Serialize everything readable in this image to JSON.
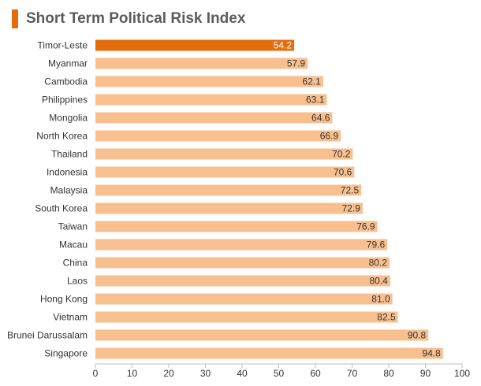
{
  "colors": {
    "highlight": "#e46c0a",
    "bar": "#f9c08f",
    "title_accent": "#e46c0a",
    "axis": "#bfbfbf",
    "highlight_label": "#ffffff",
    "label": "#333333"
  },
  "chart_data": {
    "type": "bar",
    "orientation": "horizontal",
    "title": "Short Term Political Risk Index",
    "xlabel": "",
    "ylabel": "",
    "xlim": [
      0,
      100
    ],
    "x_ticks": [
      "0",
      "10",
      "20",
      "30",
      "40",
      "50",
      "60",
      "70",
      "80",
      "90",
      "100"
    ],
    "grid": false,
    "legend": "none",
    "highlighted_category": "Timor-Leste",
    "categories": [
      "Timor-Leste",
      "Myanmar",
      "Cambodia",
      "Philippines",
      "Mongolia",
      "North Korea",
      "Thailand",
      "Indonesia",
      "Malaysia",
      "South Korea",
      "Taiwan",
      "Macau",
      "China",
      "Laos",
      "Hong Kong",
      "Vietnam",
      "Brunei Darussalam",
      "Singapore"
    ],
    "values": [
      54.2,
      57.9,
      62.1,
      63.1,
      64.6,
      66.9,
      70.2,
      70.6,
      72.5,
      72.9,
      76.9,
      79.6,
      80.2,
      80.4,
      81.0,
      82.5,
      90.8,
      94.8
    ],
    "value_labels": [
      "54.2",
      "57.9",
      "62.1",
      "63.1",
      "64.6",
      "66.9",
      "70.2",
      "70.6",
      "72.5",
      "72.9",
      "76.9",
      "79.6",
      "80.2",
      "80.4",
      "81.0",
      "82.5",
      "90.8",
      "94.8"
    ]
  }
}
